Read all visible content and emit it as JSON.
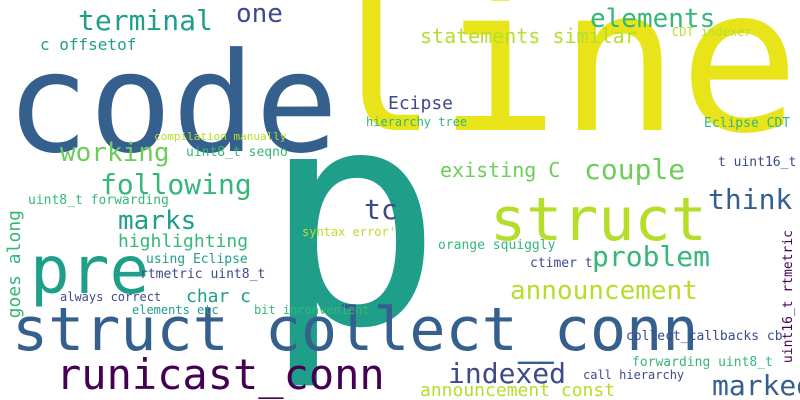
{
  "palette": {
    "yellow": "#e8e419",
    "teal": "#1f9e89",
    "blue": "#355f8d",
    "indigo": "#3e4a89",
    "purple": "#440154",
    "green": "#6ccd5a",
    "mint": "#35b779",
    "lime": "#b5de2b"
  },
  "words": [
    {
      "text": "line"
    },
    {
      "text": "code"
    },
    {
      "text": "p"
    },
    {
      "text": "struct"
    },
    {
      "text": "struct collect_conn"
    },
    {
      "text": "pre"
    },
    {
      "text": "runicast_conn"
    },
    {
      "text": "terminal"
    },
    {
      "text": "one"
    },
    {
      "text": "elements"
    },
    {
      "text": "statements similar"
    },
    {
      "text": "c offsetof"
    },
    {
      "text": "CDT indexer"
    },
    {
      "text": "Ecipse"
    },
    {
      "text": "hierarchy tree"
    },
    {
      "text": "Eclipse CDT"
    },
    {
      "text": "compilation manually"
    },
    {
      "text": "working"
    },
    {
      "text": "uint8_t seqno"
    },
    {
      "text": "existing C"
    },
    {
      "text": "couple"
    },
    {
      "text": "following"
    },
    {
      "text": "tc"
    },
    {
      "text": "think"
    },
    {
      "text": "t uint16_t"
    },
    {
      "text": "marks"
    },
    {
      "text": "highlighting"
    },
    {
      "text": "syntax error'"
    },
    {
      "text": "orange squiggly"
    },
    {
      "text": "problem"
    },
    {
      "text": "using Eclipse"
    },
    {
      "text": "rtmetric uint8_t"
    },
    {
      "text": "ctimer t"
    },
    {
      "text": "announcement"
    },
    {
      "text": "goes along"
    },
    {
      "text": "uint8_t forwarding"
    },
    {
      "text": "char c"
    },
    {
      "text": "always correct"
    },
    {
      "text": "elements etc"
    },
    {
      "text": "bit inconvenient"
    },
    {
      "text": "collect_callbacks cb"
    },
    {
      "text": "uint16_t rtmetric"
    },
    {
      "text": "indexed"
    },
    {
      "text": "marked"
    },
    {
      "text": "forwarding uint8_t"
    },
    {
      "text": "call hierarchy"
    },
    {
      "text": "announcement const"
    }
  ]
}
